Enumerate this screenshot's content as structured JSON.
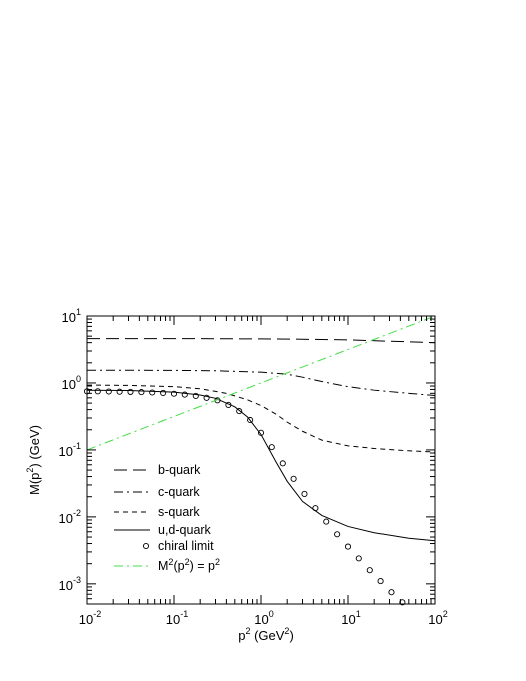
{
  "chart_data": {
    "type": "line",
    "xlabel": {
      "base": "p",
      "sup": "2",
      "rest_pre": " (GeV",
      "rest_sup": "2",
      "rest_post": ")"
    },
    "ylabel": {
      "pre": "M(p",
      "sup": "2",
      "post": ") (GeV)"
    },
    "x_scale": "log",
    "y_scale": "log",
    "xlim": [
      0.01,
      100
    ],
    "ylim": [
      0.0005,
      10
    ],
    "grid": false,
    "legend_position": "lower-left",
    "x_ticks": [
      {
        "value": 0.01,
        "base": "10",
        "exp": "-2"
      },
      {
        "value": 0.1,
        "base": "10",
        "exp": "-1"
      },
      {
        "value": 1,
        "base": "10",
        "exp": "0"
      },
      {
        "value": 10,
        "base": "10",
        "exp": "1"
      },
      {
        "value": 100,
        "base": "10",
        "exp": "2"
      }
    ],
    "y_ticks": [
      {
        "value": 0.001,
        "base": "10",
        "exp": "-3"
      },
      {
        "value": 0.01,
        "base": "10",
        "exp": "-2"
      },
      {
        "value": 0.1,
        "base": "10",
        "exp": "-1"
      },
      {
        "value": 1,
        "base": "10",
        "exp": "0"
      },
      {
        "value": 10,
        "base": "10",
        "exp": "1"
      }
    ],
    "series": [
      {
        "name": "b-quark",
        "style": "long-dash",
        "color": "#000000",
        "x": [
          0.01,
          0.1,
          1,
          3,
          10,
          30,
          100
        ],
        "y": [
          4.6,
          4.6,
          4.55,
          4.5,
          4.4,
          4.2,
          4.0
        ]
      },
      {
        "name": "c-quark",
        "style": "dash-dot",
        "color": "#000000",
        "x": [
          0.01,
          0.03,
          0.1,
          0.3,
          1,
          2,
          3,
          5,
          10,
          20,
          50,
          100
        ],
        "y": [
          1.55,
          1.55,
          1.54,
          1.52,
          1.45,
          1.35,
          1.22,
          1.05,
          0.88,
          0.78,
          0.7,
          0.65
        ]
      },
      {
        "name": "s-quark",
        "style": "short-dash",
        "color": "#000000",
        "x": [
          0.01,
          0.03,
          0.1,
          0.2,
          0.4,
          0.7,
          1,
          1.5,
          2,
          3,
          5,
          10,
          20,
          50,
          100
        ],
        "y": [
          0.93,
          0.92,
          0.88,
          0.82,
          0.7,
          0.56,
          0.46,
          0.34,
          0.26,
          0.19,
          0.14,
          0.115,
          0.105,
          0.097,
          0.093
        ]
      },
      {
        "name": "u,d-quark",
        "style": "solid",
        "color": "#000000",
        "x": [
          0.01,
          0.03,
          0.1,
          0.2,
          0.3,
          0.5,
          0.7,
          1,
          1.5,
          2,
          3,
          5,
          10,
          20,
          50,
          100
        ],
        "y": [
          0.78,
          0.77,
          0.73,
          0.66,
          0.59,
          0.44,
          0.31,
          0.17,
          0.065,
          0.034,
          0.017,
          0.0105,
          0.0072,
          0.0058,
          0.0048,
          0.0044
        ]
      },
      {
        "name": "chiral limit",
        "style": "open-circles",
        "color": "#000000",
        "x": [
          0.01,
          0.0133,
          0.0178,
          0.0237,
          0.0316,
          0.0422,
          0.0562,
          0.075,
          0.1,
          0.133,
          0.178,
          0.237,
          0.316,
          0.422,
          0.562,
          0.75,
          1,
          1.33,
          1.78,
          2.37,
          3.16,
          4.22,
          5.62,
          7.5,
          10,
          13.3,
          17.8,
          23.7,
          31.6,
          42.2
        ],
        "y": [
          0.75,
          0.75,
          0.745,
          0.74,
          0.735,
          0.73,
          0.72,
          0.71,
          0.69,
          0.67,
          0.64,
          0.6,
          0.55,
          0.47,
          0.38,
          0.28,
          0.18,
          0.11,
          0.063,
          0.037,
          0.022,
          0.0135,
          0.0085,
          0.0055,
          0.0036,
          0.0024,
          0.0016,
          0.0011,
          0.00075,
          0.00053
        ]
      },
      {
        "name_pre": "M",
        "name_sup1": "2",
        "name_mid": "(p",
        "name_sup2": "2",
        "name_mid2": ") = p",
        "name_sup3": "2",
        "style": "dash-dot",
        "color": "#44dd44",
        "x": [
          0.01,
          100
        ],
        "y": [
          0.1,
          10
        ]
      }
    ]
  }
}
